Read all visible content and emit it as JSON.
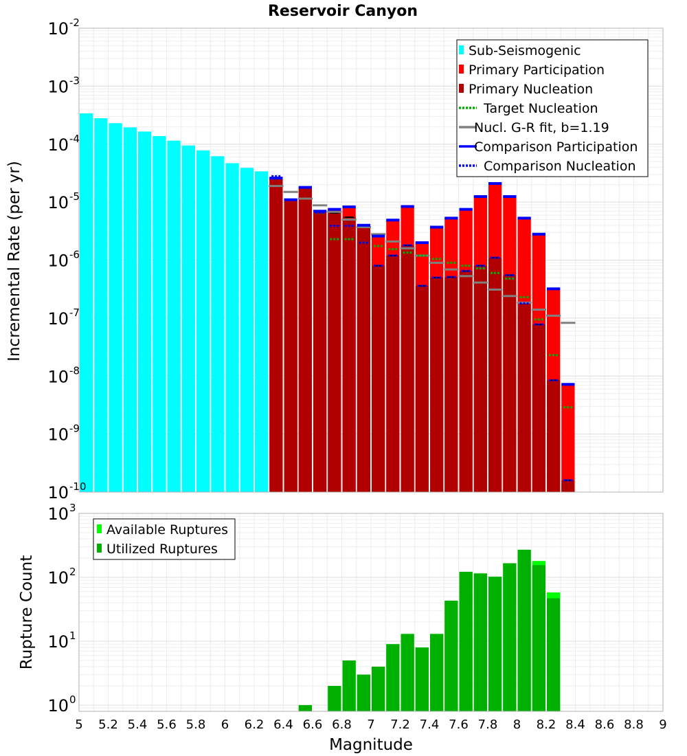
{
  "chart_data": [
    {
      "type": "bar",
      "title": "Reservoir Canyon",
      "xlabel": "",
      "ylabel": "Incremental Rate (per yr)",
      "yscale": "log",
      "xlim": [
        5,
        9
      ],
      "ylim": [
        1e-10,
        0.01
      ],
      "bin_width": 0.1,
      "ytick_labels": [
        {
          "base": "10",
          "exp": "-10",
          "value": 1e-10
        },
        {
          "base": "10",
          "exp": "-9",
          "value": 1e-09
        },
        {
          "base": "10",
          "exp": "-8",
          "value": 1e-08
        },
        {
          "base": "10",
          "exp": "-7",
          "value": 1e-07
        },
        {
          "base": "10",
          "exp": "-6",
          "value": 1e-06
        },
        {
          "base": "10",
          "exp": "-5",
          "value": 1e-05
        },
        {
          "base": "10",
          "exp": "-4",
          "value": 0.0001
        },
        {
          "base": "10",
          "exp": "-3",
          "value": 0.001
        },
        {
          "base": "10",
          "exp": "-2",
          "value": 0.01
        }
      ],
      "legend_position": "top-right",
      "legend": [
        {
          "label": "Sub-Seismogenic",
          "color": "#00ffff",
          "style": "bar"
        },
        {
          "label": "Primary Participation",
          "color": "#ff0000",
          "style": "bar"
        },
        {
          "label": "Primary Nucleation",
          "color": "#b00000",
          "style": "bar"
        },
        {
          "label": "Target Nucleation",
          "color": "#00b000",
          "style": "dotted"
        },
        {
          "label": "Nucl. G-R fit, b=1.19",
          "color": "#808080",
          "style": "solid"
        },
        {
          "label": "Comparison Participation",
          "color": "#0000ff",
          "style": "solid"
        },
        {
          "label": "Comparison Nucleation",
          "color": "#0000ff",
          "style": "dotted"
        }
      ],
      "series": [
        {
          "name": "Sub-Seismogenic",
          "x": [
            5.05,
            5.15,
            5.25,
            5.35,
            5.45,
            5.55,
            5.65,
            5.75,
            5.85,
            5.95,
            6.05,
            6.15,
            6.25
          ],
          "values": [
            0.00034,
            0.00028,
            0.00023,
            0.000195,
            0.000165,
            0.000138,
            0.000115,
            9.5e-05,
            7.8e-05,
            6.2e-05,
            4.7e-05,
            3.9e-05,
            3.4e-05
          ]
        },
        {
          "name": "Primary Participation",
          "x": [
            6.35,
            6.45,
            6.55,
            6.65,
            6.75,
            6.85,
            6.95,
            7.05,
            7.15,
            7.25,
            7.35,
            7.45,
            7.55,
            7.65,
            7.75,
            7.85,
            7.95,
            8.05,
            8.15,
            8.25,
            8.35
          ],
          "values": [
            2.6e-05,
            1.1e-05,
            1.8e-05,
            7e-06,
            7.5e-06,
            8.3e-06,
            4e-06,
            2.6e-06,
            4.9e-06,
            8.4e-06,
            2e-06,
            3.7e-06,
            5.3e-06,
            7.5e-06,
            1.25e-05,
            2.1e-05,
            1.25e-05,
            5.3e-06,
            2.8e-06,
            3.2e-07,
            7.2e-09
          ]
        },
        {
          "name": "Primary Nucleation",
          "x": [
            6.35,
            6.45,
            6.55,
            6.65,
            6.75,
            6.85,
            6.95,
            7.05,
            7.15,
            7.25,
            7.35,
            7.45,
            7.55,
            7.65,
            7.75,
            7.85,
            7.95,
            8.05,
            8.15,
            8.25,
            8.35
          ],
          "values": [
            2.6e-05,
            1.1e-05,
            1.8e-05,
            7e-06,
            6.5e-06,
            5.5e-06,
            3.7e-06,
            8e-07,
            1.2e-06,
            1.8e-06,
            3.6e-07,
            5e-07,
            5.1e-07,
            6.5e-07,
            8e-07,
            1.1e-06,
            5.5e-07,
            1.8e-07,
            7.8e-08,
            8.5e-09,
            1.6e-10
          ]
        },
        {
          "name": "Target Nucleation",
          "x": [
            6.65,
            6.75,
            6.85,
            6.95,
            7.05,
            7.15,
            7.25,
            7.35,
            7.45,
            7.55,
            7.65,
            7.75,
            7.85,
            7.95,
            8.05,
            8.15,
            8.25,
            8.35
          ],
          "values": [
            6.5e-06,
            2.3e-06,
            2.3e-06,
            2e-06,
            1.75e-06,
            1.55e-06,
            1.35e-06,
            1.2e-06,
            1.05e-06,
            9e-07,
            8e-07,
            7.2e-07,
            6e-07,
            4.8e-07,
            2.3e-07,
            9.5e-08,
            2.3e-08,
            2.9e-09
          ]
        },
        {
          "name": "Nucl. G-R fit, b=1.19",
          "x": [
            6.35,
            6.45,
            6.55,
            6.65,
            6.75,
            6.85,
            6.95,
            7.05,
            7.15,
            7.25,
            7.35,
            7.45,
            7.55,
            7.65,
            7.75,
            7.85,
            7.95,
            8.05,
            8.15,
            8.25,
            8.35
          ],
          "values": [
            1.9e-05,
            1.5e-05,
            1.15e-05,
            8.8e-06,
            6.8e-06,
            5e-06,
            3.7e-06,
            2.8e-06,
            2.1e-06,
            1.6e-06,
            1.2e-06,
            9e-07,
            6.9e-07,
            5.3e-07,
            4.1e-07,
            3.1e-07,
            2.4e-07,
            1.85e-07,
            1.4e-07,
            1.1e-07,
            8.3e-08
          ]
        },
        {
          "name": "Comparison Participation",
          "x": [
            6.35,
            6.45,
            6.55,
            6.65,
            6.75,
            6.85,
            6.95,
            7.05,
            7.15,
            7.25,
            7.35,
            7.45,
            7.55,
            7.65,
            7.75,
            7.85,
            7.95,
            8.05,
            8.15,
            8.25,
            8.35
          ],
          "values": [
            2.6e-05,
            1.1e-05,
            1.8e-05,
            7e-06,
            7.5e-06,
            8.3e-06,
            4e-06,
            2.6e-06,
            4.9e-06,
            8.4e-06,
            2e-06,
            3.7e-06,
            5.3e-06,
            7.5e-06,
            1.25e-05,
            2.1e-05,
            1.25e-05,
            5.3e-06,
            2.8e-06,
            3.2e-07,
            7.2e-09
          ]
        },
        {
          "name": "Comparison Nucleation",
          "x": [
            6.35,
            6.45,
            6.55,
            6.65,
            6.75,
            6.85,
            6.95,
            7.05,
            7.15,
            7.25,
            7.35,
            7.45,
            7.55,
            7.65,
            7.75,
            7.85,
            7.95,
            8.05,
            8.15,
            8.25,
            8.35
          ],
          "values": [
            2.8e-05,
            1.1e-05,
            1.8e-05,
            6.6e-06,
            3.9e-06,
            3.9e-06,
            2e-06,
            8e-07,
            1.2e-06,
            1.8e-06,
            3.6e-07,
            5e-07,
            5.1e-07,
            6.5e-07,
            8e-07,
            1.1e-06,
            5.5e-07,
            1.8e-07,
            7.8e-08,
            8.5e-09,
            1.6e-10
          ]
        }
      ]
    },
    {
      "type": "bar",
      "title": "",
      "xlabel": "Magnitude",
      "ylabel": "Rupture Count",
      "yscale": "log",
      "xlim": [
        5,
        9
      ],
      "ylim": [
        0.8,
        1000
      ],
      "bin_width": 0.1,
      "xtick_labels": [
        "5",
        "5.2",
        "5.4",
        "5.6",
        "5.8",
        "6",
        "6.2",
        "6.4",
        "6.6",
        "6.8",
        "7",
        "7.2",
        "7.4",
        "7.6",
        "7.8",
        "8",
        "8.2",
        "8.4",
        "8.6",
        "8.8",
        "9"
      ],
      "ytick_labels": [
        {
          "base": "10",
          "exp": "0",
          "value": 1
        },
        {
          "base": "10",
          "exp": "1",
          "value": 10
        },
        {
          "base": "10",
          "exp": "2",
          "value": 100
        },
        {
          "base": "10",
          "exp": "3",
          "value": 1000
        }
      ],
      "legend_position": "top-left",
      "legend": [
        {
          "label": "Available Ruptures",
          "color": "#00ff00",
          "style": "bar"
        },
        {
          "label": "Utilized Ruptures",
          "color": "#00b000",
          "style": "bar"
        }
      ],
      "series": [
        {
          "name": "Available Ruptures",
          "x": [
            6.55,
            6.75,
            6.85,
            6.95,
            7.05,
            7.15,
            7.25,
            7.35,
            7.45,
            7.55,
            7.65,
            7.75,
            7.85,
            7.95,
            8.05,
            8.15,
            8.25
          ],
          "values": [
            1,
            2,
            5,
            3,
            4,
            9,
            13,
            8,
            13,
            43,
            122,
            115,
            102,
            166,
            270,
            180,
            58
          ]
        },
        {
          "name": "Utilized Ruptures",
          "x": [
            6.55,
            6.75,
            6.85,
            6.95,
            7.05,
            7.15,
            7.25,
            7.35,
            7.45,
            7.55,
            7.65,
            7.75,
            7.85,
            7.95,
            8.05,
            8.15,
            8.25
          ],
          "values": [
            1,
            2,
            5,
            3,
            4,
            9,
            13,
            8,
            13,
            43,
            122,
            115,
            102,
            166,
            270,
            155,
            47
          ]
        }
      ]
    }
  ]
}
